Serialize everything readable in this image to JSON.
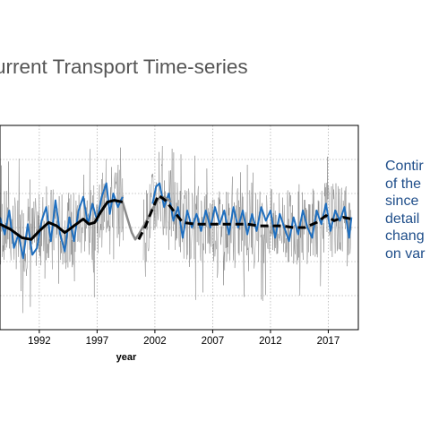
{
  "slide": {
    "title": "urrent Transport Time-series",
    "side_text_lines": [
      "Contir",
      "of the",
      "since",
      "detail",
      "chang",
      "on var"
    ]
  },
  "colors": {
    "raw": "#6e6e6e",
    "monthly": "#1f6fbf",
    "smooth": "#000000",
    "gap_fill": "#8a8a8a",
    "side_text": "#1f4e8a"
  },
  "chart_data": {
    "type": "line",
    "title": "",
    "xlabel": "year",
    "ylabel": "",
    "xlim": [
      1988.6,
      2019.6
    ],
    "ylim": [
      -3,
      3
    ],
    "xticks": [
      1992,
      1997,
      2002,
      2007,
      2012,
      2017
    ],
    "yticks": [
      -2,
      -1,
      0,
      1,
      2
    ],
    "grid": true,
    "gap": [
      1999.3,
      2000.6
    ],
    "smooth_series": {
      "x": [
        1988.6,
        1989.5,
        1990.5,
        1991.3,
        1992.0,
        1992.8,
        1993.5,
        1994.2,
        1995.0,
        1995.8,
        1996.3,
        1996.8,
        1997.3,
        1997.9,
        1998.5,
        1999.2,
        2000.6,
        2001.2,
        2001.8,
        2002.3,
        2002.9,
        2003.6,
        2004.4,
        2005.5,
        2007.0,
        2008.5,
        2010.0,
        2011.0,
        2012.0,
        2013.0,
        2014.0,
        2015.0,
        2016.0,
        2016.8,
        2017.5,
        2018.3,
        2019.0
      ],
      "y": [
        0.1,
        -0.05,
        -0.3,
        -0.35,
        -0.1,
        0.15,
        0.05,
        -0.15,
        0.05,
        0.25,
        0.1,
        0.15,
        0.45,
        0.75,
        0.8,
        0.75,
        -0.35,
        0.05,
        0.55,
        0.95,
        0.8,
        0.5,
        0.15,
        0.1,
        0.1,
        0.1,
        0.1,
        0.05,
        0.05,
        0.05,
        0.0,
        0.0,
        0.15,
        0.35,
        0.2,
        0.3,
        0.25
      ]
    },
    "gap_series": {
      "x": [
        1999.2,
        1999.6,
        2000.0,
        2000.3,
        2000.6,
        2001.2,
        2001.8,
        2002.3,
        2002.8,
        2003.4
      ],
      "y": [
        0.75,
        0.3,
        -0.15,
        -0.35,
        -0.2,
        0.15,
        0.55,
        0.85,
        0.9,
        0.75
      ]
    },
    "monthly_series": {
      "x": [
        1988.6,
        1989.0,
        1989.4,
        1989.8,
        1990.2,
        1990.6,
        1991.0,
        1991.4,
        1991.8,
        1992.2,
        1992.6,
        1993.0,
        1993.4,
        1993.8,
        1994.2,
        1994.6,
        1995.0,
        1995.4,
        1995.8,
        1996.2,
        1996.6,
        1997.0,
        1997.4,
        1997.8,
        1998.1,
        1998.4,
        1998.8,
        1999.2,
        2001.8,
        2002.1,
        2002.4,
        2002.8,
        2003.2,
        2003.6,
        2004.0,
        2004.4,
        2004.8,
        2005.2,
        2005.6,
        2006.0,
        2006.4,
        2006.8,
        2007.2,
        2007.6,
        2008.0,
        2008.4,
        2008.8,
        2009.2,
        2009.6,
        2010.0,
        2010.4,
        2010.8,
        2011.2,
        2011.6,
        2012.0,
        2012.4,
        2012.8,
        2013.2,
        2013.6,
        2014.0,
        2014.4,
        2014.8,
        2015.2,
        2015.6,
        2016.0,
        2016.4,
        2016.8,
        2017.2,
        2017.6,
        2018.0,
        2018.4,
        2018.8,
        2019.0
      ],
      "y": [
        0.3,
        -0.2,
        0.5,
        -0.6,
        -0.2,
        -0.9,
        0.1,
        -0.8,
        -0.6,
        0.2,
        0.6,
        -0.4,
        0.8,
        -0.2,
        -0.7,
        0.3,
        -0.4,
        0.5,
        0.9,
        0.1,
        0.7,
        0.2,
        0.9,
        1.3,
        0.4,
        1.0,
        0.6,
        0.9,
        0.7,
        1.2,
        1.3,
        0.6,
        1.0,
        0.2,
        0.6,
        -0.3,
        0.5,
        0.0,
        0.4,
        -0.1,
        0.5,
        0.0,
        0.6,
        0.1,
        0.5,
        -0.2,
        0.6,
        0.0,
        0.5,
        -0.2,
        0.4,
        -0.1,
        0.6,
        0.2,
        0.5,
        -0.3,
        0.4,
        0.0,
        -0.4,
        0.3,
        -0.2,
        0.5,
        0.0,
        -0.3,
        0.5,
        0.1,
        0.7,
        -0.1,
        0.5,
        0.2,
        0.6,
        -0.3,
        0.3
      ]
    }
  }
}
